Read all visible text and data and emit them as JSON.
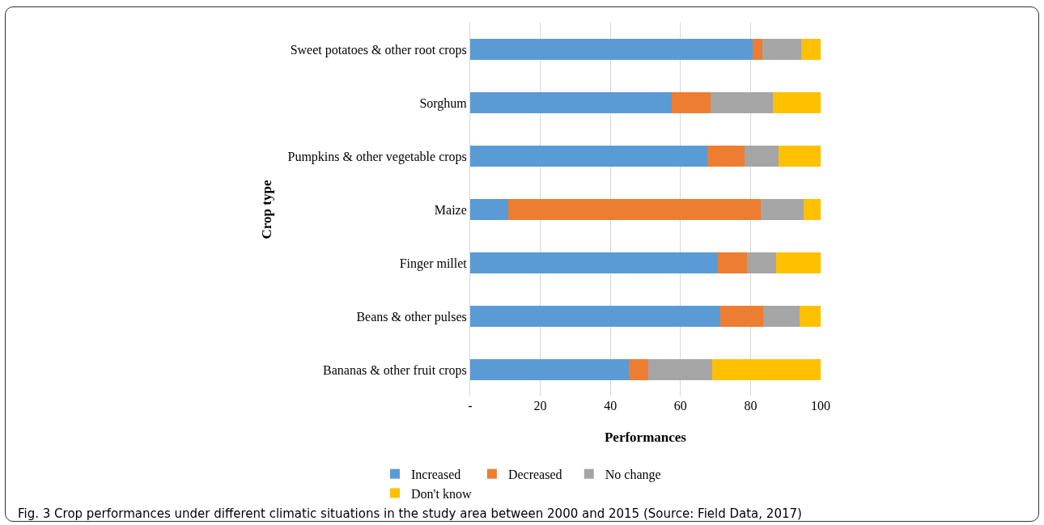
{
  "chart_data": {
    "type": "bar",
    "orientation": "horizontal",
    "stacked": true,
    "categories": [
      "Sweet potatoes & other root crops",
      "Sorghum",
      "Pumpkins & other vegetable crops",
      "Maize",
      "Finger millet",
      "Beans & other pulses",
      "Bananas & other fruit crops"
    ],
    "series": [
      {
        "name": "Increased",
        "color": "#5b9bd5",
        "values": [
          80.7,
          57.6,
          67.6,
          10.9,
          70.6,
          71.3,
          45.3
        ]
      },
      {
        "name": "Decreased",
        "color": "#ed7d31",
        "values": [
          2.6,
          11.1,
          10.7,
          72.1,
          8.4,
          12.4,
          5.4
        ]
      },
      {
        "name": "No change",
        "color": "#a5a5a5",
        "values": [
          11.1,
          17.7,
          9.7,
          12.1,
          8.4,
          10.3,
          18.3
        ]
      },
      {
        "name": "Don't know",
        "color": "#ffc000",
        "values": [
          5.6,
          13.6,
          12.0,
          4.9,
          12.6,
          6.0,
          31.0
        ]
      }
    ],
    "xlim": [
      0,
      100
    ],
    "xticks": [
      {
        "value": 0,
        "label": "-"
      },
      20,
      40,
      60,
      80,
      100
    ],
    "xlabel": "Performances",
    "ylabel": "Crop type",
    "grid": true,
    "legend": "bottom",
    "annotations": [
      "Fig. 3 Crop performances under different climatic situations in the study area between 2000 and 2015 (Source: Field Data, 2017)"
    ]
  }
}
